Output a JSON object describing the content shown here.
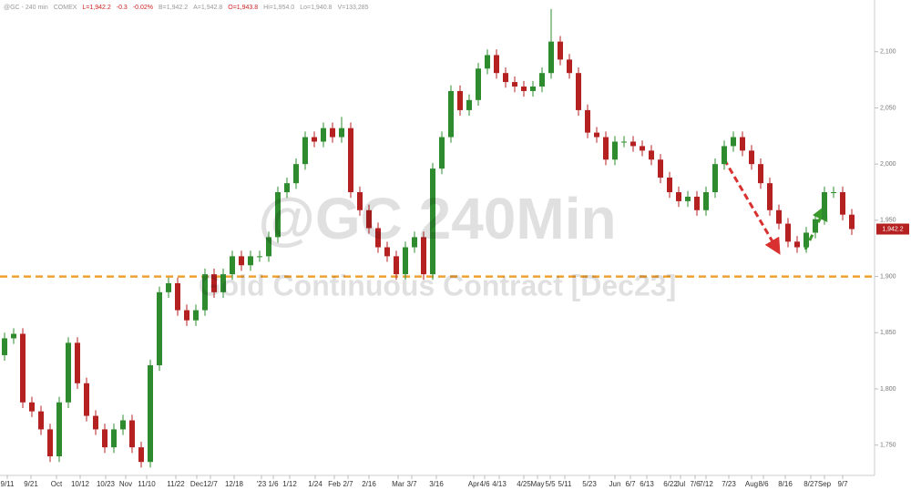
{
  "chart_data": {
    "type": "candlestick",
    "header_items": [
      {
        "text": "@GC - 240 min",
        "color": "#999999"
      },
      {
        "text": "COMEX",
        "color": "#999999"
      },
      {
        "text": "L=1,942.2",
        "color": "#cc2222"
      },
      {
        "text": "-0.3",
        "color": "#cc2222"
      },
      {
        "text": "-0.02%",
        "color": "#cc2222"
      },
      {
        "text": "B=1,942.2",
        "color": "#999999"
      },
      {
        "text": "A=1,942.8",
        "color": "#999999"
      },
      {
        "text": "O=1,943.8",
        "color": "#cc2222"
      },
      {
        "text": "Hi=1,954.0",
        "color": "#999999"
      },
      {
        "text": "Lo=1,940.8",
        "color": "#999999"
      },
      {
        "text": "V=133,285",
        "color": "#999999"
      }
    ],
    "watermark": "@GC 240Min",
    "watermark_subtitle": "Gold Continuous Contract [Dec23]",
    "up_color": "#2e8b2e",
    "down_color": "#b52020",
    "open": [
      1830,
      1845,
      1849,
      1788,
      1780,
      1764,
      1740,
      1788,
      1841,
      1805,
      1776,
      1764,
      1748,
      1764,
      1772,
      1748,
      1735,
      1821,
      1886,
      1894,
      1870,
      1861,
      1870,
      1902,
      1886,
      1902,
      1918,
      1910,
      1918,
      1918,
      1935,
      1975,
      1983,
      2000,
      2024,
      2020,
      2032,
      2024,
      2032,
      1975,
      1959,
      1943,
      1926,
      1918,
      1902,
      1926,
      1935,
      1902,
      1996,
      2024,
      2065,
      2048,
      2057,
      2085,
      2097,
      2081,
      2073,
      2069,
      2065,
      2069,
      2081,
      2109,
      2093,
      2081,
      2048,
      2028,
      2024,
      2004,
      2020,
      2020,
      2016,
      2012,
      2004,
      1988,
      1975,
      1967,
      1971,
      1959,
      1975,
      2000,
      2016,
      2024,
      2012,
      2000,
      1983,
      1959,
      1947,
      1931,
      1926,
      1939,
      1951,
      1975,
      1975,
      1955
    ],
    "high": [
      1850,
      1854,
      1854,
      1793,
      1785,
      1769,
      1793,
      1846,
      1846,
      1810,
      1781,
      1769,
      1769,
      1777,
      1777,
      1753,
      1826,
      1891,
      1899,
      1899,
      1875,
      1875,
      1907,
      1907,
      1907,
      1923,
      1923,
      1923,
      1923,
      1940,
      1980,
      1988,
      2005,
      2029,
      2029,
      2037,
      2037,
      2042,
      2037,
      1980,
      1964,
      1948,
      1931,
      1923,
      1931,
      1940,
      1940,
      2001,
      2029,
      2070,
      2070,
      2062,
      2090,
      2102,
      2102,
      2086,
      2078,
      2074,
      2074,
      2086,
      2138,
      2114,
      2098,
      2086,
      2053,
      2033,
      2029,
      2025,
      2025,
      2025,
      2021,
      2017,
      2009,
      1993,
      1980,
      1976,
      1976,
      1980,
      2005,
      2021,
      2029,
      2029,
      2017,
      2005,
      1988,
      1964,
      1952,
      1936,
      1944,
      1956,
      1980,
      1980,
      1980,
      1960
    ],
    "low": [
      1825,
      1840,
      1783,
      1775,
      1759,
      1735,
      1735,
      1783,
      1800,
      1771,
      1759,
      1743,
      1743,
      1759,
      1743,
      1730,
      1730,
      1816,
      1881,
      1865,
      1856,
      1856,
      1865,
      1881,
      1881,
      1897,
      1905,
      1905,
      1913,
      1913,
      1930,
      1970,
      1978,
      1995,
      2015,
      2015,
      2019,
      2019,
      1970,
      1954,
      1938,
      1921,
      1913,
      1897,
      1897,
      1921,
      1897,
      1897,
      1991,
      2019,
      2043,
      2043,
      2052,
      2080,
      2076,
      2068,
      2064,
      2060,
      2060,
      2064,
      2076,
      2088,
      2076,
      2043,
      2023,
      2019,
      1999,
      1999,
      2015,
      2011,
      2007,
      1999,
      1983,
      1970,
      1962,
      1962,
      1954,
      1954,
      1970,
      1995,
      2011,
      2007,
      1995,
      1978,
      1954,
      1942,
      1926,
      1921,
      1921,
      1934,
      1946,
      1970,
      1950,
      1937
    ],
    "close": [
      1845,
      1849,
      1788,
      1780,
      1764,
      1740,
      1788,
      1841,
      1805,
      1776,
      1764,
      1748,
      1764,
      1772,
      1748,
      1735,
      1821,
      1886,
      1894,
      1870,
      1861,
      1870,
      1902,
      1886,
      1902,
      1918,
      1910,
      1918,
      1918,
      1935,
      1975,
      1983,
      2000,
      2024,
      2020,
      2032,
      2024,
      2032,
      1975,
      1959,
      1943,
      1926,
      1918,
      1902,
      1926,
      1935,
      1902,
      1996,
      2024,
      2065,
      2048,
      2057,
      2085,
      2097,
      2081,
      2073,
      2069,
      2065,
      2069,
      2081,
      2109,
      2093,
      2081,
      2048,
      2028,
      2024,
      2004,
      2020,
      2020,
      2016,
      2012,
      2004,
      1988,
      1975,
      1967,
      1971,
      1959,
      1975,
      2000,
      2016,
      2024,
      2012,
      2000,
      1983,
      1959,
      1947,
      1931,
      1926,
      1939,
      1951,
      1975,
      1975,
      1955,
      1942.2
    ],
    "last_price": {
      "value": 1942.2,
      "label": "1,942.2"
    },
    "support_level": 1900,
    "support_color": "#f0a030",
    "xlim": [
      0,
      96
    ],
    "xticks": [
      {
        "value": 0.8,
        "label": "9/11"
      },
      {
        "value": 3.4,
        "label": "9/21"
      },
      {
        "value": 6.2,
        "label": "Oct"
      },
      {
        "value": 8.8,
        "label": "10/12"
      },
      {
        "value": 11.6,
        "label": "10/23"
      },
      {
        "value": 13.8,
        "label": "Nov"
      },
      {
        "value": 16.1,
        "label": "11/10"
      },
      {
        "value": 19.3,
        "label": "11/22"
      },
      {
        "value": 21.6,
        "label": "Dec"
      },
      {
        "value": 23.1,
        "label": "12/7"
      },
      {
        "value": 25.7,
        "label": "12/18"
      },
      {
        "value": 28.7,
        "label": "'23"
      },
      {
        "value": 30,
        "label": "1/6"
      },
      {
        "value": 31.8,
        "label": "1/12"
      },
      {
        "value": 34.6,
        "label": "1/24"
      },
      {
        "value": 36.7,
        "label": "Feb"
      },
      {
        "value": 38.2,
        "label": "2/7"
      },
      {
        "value": 40.5,
        "label": "2/16"
      },
      {
        "value": 43.7,
        "label": "Mar"
      },
      {
        "value": 45.2,
        "label": "3/7"
      },
      {
        "value": 47.9,
        "label": "3/16"
      },
      {
        "value": 52,
        "label": "Apr"
      },
      {
        "value": 53.2,
        "label": "4/6"
      },
      {
        "value": 54.8,
        "label": "4/13"
      },
      {
        "value": 57.5,
        "label": "4/25"
      },
      {
        "value": 59,
        "label": "May"
      },
      {
        "value": 60.4,
        "label": "5/5"
      },
      {
        "value": 62,
        "label": "5/11"
      },
      {
        "value": 64.7,
        "label": "5/23"
      },
      {
        "value": 67.5,
        "label": "Jun"
      },
      {
        "value": 69.2,
        "label": "6/7"
      },
      {
        "value": 71,
        "label": "6/13"
      },
      {
        "value": 73.6,
        "label": "6/22"
      },
      {
        "value": 74.7,
        "label": "Jul"
      },
      {
        "value": 76.3,
        "label": "7/6"
      },
      {
        "value": 77.5,
        "label": "7/12"
      },
      {
        "value": 80,
        "label": "7/23"
      },
      {
        "value": 82.5,
        "label": "Aug"
      },
      {
        "value": 83.8,
        "label": "8/6"
      },
      {
        "value": 86.2,
        "label": "8/16"
      },
      {
        "value": 89,
        "label": "8/27"
      },
      {
        "value": 90.5,
        "label": "Sep"
      },
      {
        "value": 92.5,
        "label": "9/7"
      }
    ],
    "ylim": [
      1723,
      2146
    ],
    "yticks": [
      {
        "value": 1750,
        "label": "1,750"
      },
      {
        "value": 1800,
        "label": "1,800"
      },
      {
        "value": 1850,
        "label": "1,850"
      },
      {
        "value": 1900,
        "label": "1,900"
      },
      {
        "value": 1950,
        "label": "1,950"
      },
      {
        "value": 2000,
        "label": "2,000"
      },
      {
        "value": 2050,
        "label": "2,050"
      },
      {
        "value": 2100,
        "label": "2,100"
      }
    ]
  }
}
